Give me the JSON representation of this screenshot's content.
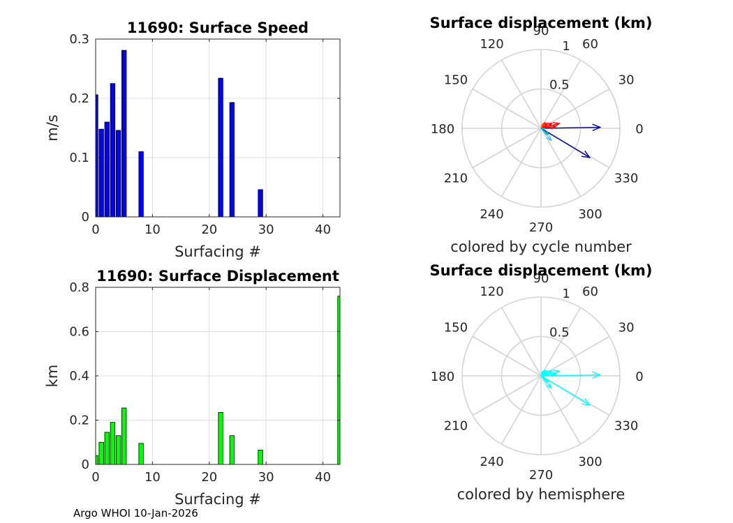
{
  "footer": "Argo WHOI 10-Jan-2026",
  "chart_data": [
    {
      "type": "bar",
      "title": "11690: Surface Speed",
      "xlabel": "Surfacing #",
      "ylabel": "m/s",
      "xlim": [
        0,
        43
      ],
      "ylim": [
        0,
        0.3
      ],
      "xticks": [
        "0",
        "10",
        "20",
        "30",
        "40"
      ],
      "xtick_values": [
        0,
        10,
        20,
        30,
        40
      ],
      "yticks": [
        "0",
        "0.1",
        "0.2",
        "0.3"
      ],
      "ytick_values": [
        0,
        0.1,
        0.2,
        0.3
      ],
      "grid": true,
      "color": "#0000ff",
      "x": [
        0,
        1,
        2,
        3,
        4,
        5,
        8,
        22,
        24,
        29
      ],
      "values": [
        0.206,
        0.148,
        0.16,
        0.225,
        0.146,
        0.281,
        0.11,
        0.234,
        0.193,
        0.046
      ]
    },
    {
      "type": "bar",
      "title": "11690: Surface Displacement",
      "xlabel": "Surfacing #",
      "ylabel": "km",
      "xlim": [
        0,
        43
      ],
      "ylim": [
        0,
        0.8
      ],
      "xticks": [
        "0",
        "10",
        "20",
        "30",
        "40"
      ],
      "xtick_values": [
        0,
        10,
        20,
        30,
        40
      ],
      "yticks": [
        "0",
        "0.2",
        "0.4",
        "0.6",
        "0.8"
      ],
      "ytick_values": [
        0,
        0.2,
        0.4,
        0.6,
        0.8
      ],
      "grid": true,
      "color": "#00ff00",
      "x": [
        0,
        1,
        2,
        3,
        4,
        5,
        8,
        22,
        24,
        29,
        43
      ],
      "values": [
        0.04,
        0.1,
        0.145,
        0.19,
        0.13,
        0.255,
        0.095,
        0.235,
        0.13,
        0.065,
        0.76
      ]
    },
    {
      "type": "polar",
      "title": "Surface displacement (km)",
      "caption": "colored by cycle number",
      "rmax": 1,
      "rticks": [
        "0.5",
        "1"
      ],
      "rtick_values": [
        0.5,
        1
      ],
      "angle_labels": [
        "0",
        "30",
        "60",
        "90",
        "120",
        "150",
        "180",
        "210",
        "240",
        "270",
        "300",
        "330"
      ],
      "angle_values": [
        0,
        30,
        60,
        90,
        120,
        150,
        180,
        210,
        240,
        270,
        300,
        330
      ],
      "arrows": [
        {
          "angle": 1,
          "r": 0.75,
          "color": "#00008b"
        },
        {
          "angle": -31,
          "r": 0.72,
          "color": "#00008b"
        },
        {
          "angle": 15,
          "r": 0.24,
          "color": "#ff0000"
        },
        {
          "angle": 25,
          "r": 0.15,
          "color": "#ff0000"
        },
        {
          "angle": 40,
          "r": 0.1,
          "color": "#ff0000"
        },
        {
          "angle": 8,
          "r": 0.19,
          "color": "#ff0000"
        },
        {
          "angle": 55,
          "r": 0.09,
          "color": "#ff2a00"
        },
        {
          "angle": -50,
          "r": 0.2,
          "color": "#40c0ff"
        },
        {
          "angle": -40,
          "r": 0.12,
          "color": "#00b0b0"
        },
        {
          "angle": 70,
          "r": 0.06,
          "color": "#ff6a00"
        },
        {
          "angle": -5,
          "r": 0.05,
          "color": "#00c0e0"
        }
      ]
    },
    {
      "type": "polar",
      "title": "Surface displacement (km)",
      "caption": "colored by hemisphere",
      "rmax": 1,
      "rticks": [
        "0.5",
        "1"
      ],
      "rtick_values": [
        0.5,
        1
      ],
      "angle_labels": [
        "0",
        "30",
        "60",
        "90",
        "120",
        "150",
        "180",
        "210",
        "240",
        "270",
        "300",
        "330"
      ],
      "angle_values": [
        0,
        30,
        60,
        90,
        120,
        150,
        180,
        210,
        240,
        270,
        300,
        330
      ],
      "arrows": [
        {
          "angle": 1,
          "r": 0.75,
          "color": "#00ffff"
        },
        {
          "angle": -31,
          "r": 0.72,
          "color": "#00ffff"
        },
        {
          "angle": 15,
          "r": 0.24,
          "color": "#00ffff"
        },
        {
          "angle": 25,
          "r": 0.15,
          "color": "#00ffff"
        },
        {
          "angle": 40,
          "r": 0.1,
          "color": "#00ffff"
        },
        {
          "angle": 8,
          "r": 0.19,
          "color": "#00ffff"
        },
        {
          "angle": 55,
          "r": 0.09,
          "color": "#00ffff"
        },
        {
          "angle": -50,
          "r": 0.2,
          "color": "#00ffff"
        },
        {
          "angle": -40,
          "r": 0.12,
          "color": "#00ffff"
        },
        {
          "angle": 70,
          "r": 0.06,
          "color": "#00ffff"
        },
        {
          "angle": -5,
          "r": 0.05,
          "color": "#00ffff"
        }
      ]
    }
  ]
}
